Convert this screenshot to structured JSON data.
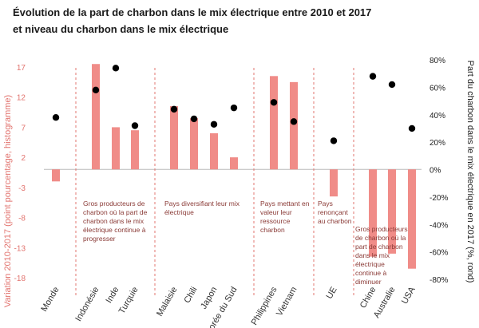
{
  "title_line1": "Évolution de la part de charbon dans le mix électrique entre 2010 et 2017",
  "title_line2": "et niveau du charbon dans le mix électrique",
  "chart_data": {
    "type": "bar",
    "categories": [
      "Monde",
      "Indonésie",
      "Inde",
      "Turquie",
      "Malaisie",
      "Chili",
      "Japon",
      "Corée du Sud",
      "Philippines",
      "Vietnam",
      "UE",
      "Chine",
      "Australie",
      "USA"
    ],
    "series": [
      {
        "axis": "left",
        "kind": "bar",
        "color": "#f08c88",
        "values": [
          -2,
          17.5,
          7,
          6.5,
          10.5,
          8.5,
          6,
          2,
          15.5,
          14.5,
          -4.5,
          -14.5,
          -14,
          -16.5
        ]
      },
      {
        "axis": "right",
        "kind": "scatter",
        "color": "#000000",
        "values": [
          38,
          58,
          74,
          32,
          44,
          37,
          33,
          45,
          49,
          35,
          21,
          68,
          62,
          30
        ]
      }
    ],
    "ylabel_left": "Variation 2010-2017 (point pourcentage, histogramme)",
    "ylabel_right": "Part du charbon dans le mix électrique en 2017 (%, rond)",
    "ylim_left": [
      -18,
      20
    ],
    "ylim_right": [
      -80,
      80
    ],
    "yticks_left": [
      "17",
      "12",
      "7",
      "2",
      "-3",
      "-8",
      "-13",
      "-18"
    ],
    "yticks_right": [
      "80%",
      "60%",
      "40%",
      "20%",
      "0%",
      "-20%",
      "-40%",
      "-60%",
      "-80%"
    ],
    "groups": [
      {
        "start": 1,
        "end": 3,
        "label": [
          "Gros producteurs de",
          "charbon où la part de",
          "charbon dans le mix",
          "électrique continue à",
          "progresser"
        ]
      },
      {
        "start": 4,
        "end": 7,
        "label": [
          "Pays diversifiant leur mix",
          "électrique"
        ]
      },
      {
        "start": 8,
        "end": 9,
        "label": [
          "Pays mettant en",
          "valeur leur",
          "ressource",
          "charbon"
        ]
      },
      {
        "start": 10,
        "end": 10,
        "label": [
          "Pays",
          "renonçant",
          "au charbon"
        ]
      },
      {
        "start": 11,
        "end": 13,
        "label": [
          "Gros producteurs",
          "de charbon où la",
          "part de charbon",
          "dans le mix",
          "électrique",
          "continue à",
          "diminuer"
        ]
      }
    ],
    "grid": false,
    "legend": "none"
  }
}
